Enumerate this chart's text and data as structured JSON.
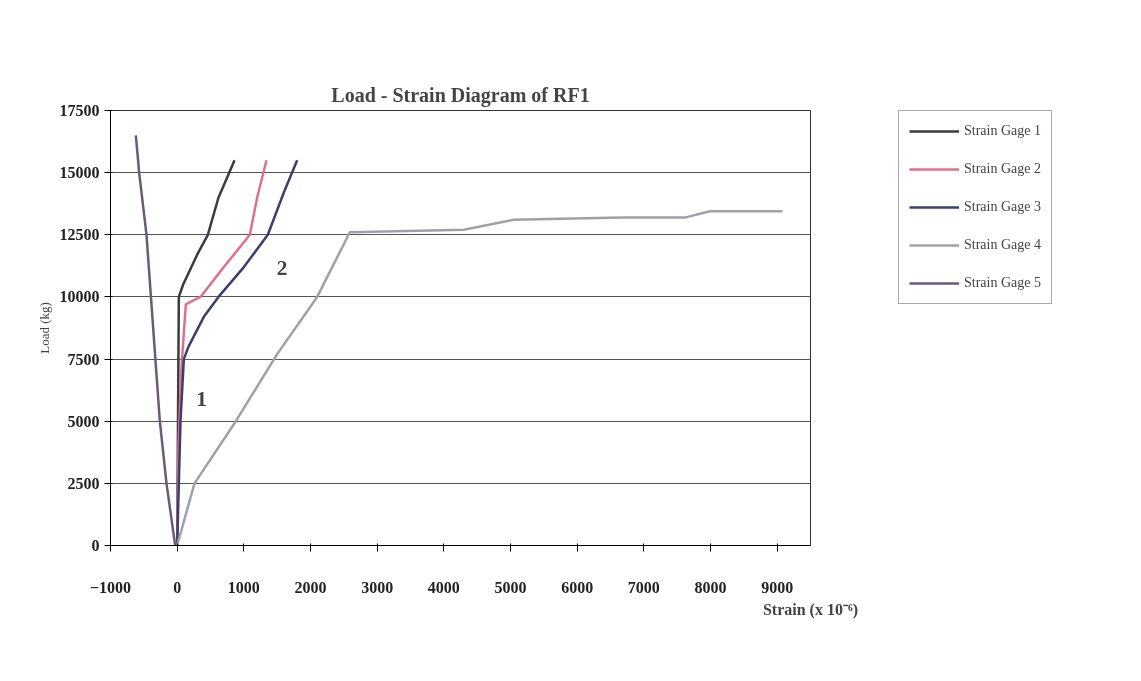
{
  "chart_data": {
    "type": "line",
    "title": "Load - Strain Diagram of RF1",
    "xlabel": "Strain (x 10⁻⁶)",
    "ylabel": "Load (kg)",
    "xlim": [
      -1000,
      9500
    ],
    "xticks": [
      -1000,
      0,
      1000,
      2000,
      3000,
      4000,
      5000,
      6000,
      7000,
      8000,
      9000
    ],
    "ylim": [
      0,
      17500
    ],
    "yticks": [
      0,
      2500,
      5000,
      7500,
      10000,
      12500,
      15000,
      17500
    ],
    "grid": "y",
    "legend": "right",
    "marker": "none",
    "line_style": "solid",
    "annotations": [
      "1",
      "2"
    ],
    "series": [
      {
        "name": "Strain Gage 1",
        "color": "#3a3a44",
        "x": [
          0,
          10,
          20,
          25,
          90,
          300,
          460,
          620,
          750,
          860
        ],
        "values": [
          0,
          4000,
          8000,
          10000,
          10500,
          11700,
          12500,
          14000,
          14800,
          15500
        ]
      },
      {
        "name": "Strain Gage 2",
        "color": "#e0708a",
        "x": [
          0,
          20,
          60,
          130,
          200,
          350,
          700,
          1090,
          1200,
          1340
        ],
        "values": [
          0,
          4000,
          7000,
          9700,
          9800,
          10000,
          11200,
          12500,
          14000,
          15500
        ]
      },
      {
        "name": "Strain Gage 3",
        "color": "#3c3f6e",
        "x": [
          0,
          30,
          50,
          100,
          170,
          400,
          620,
          1000,
          1360,
          1600,
          1800
        ],
        "values": [
          0,
          3000,
          5000,
          7500,
          8000,
          9200,
          10000,
          11200,
          12500,
          14200,
          15500
        ]
      },
      {
        "name": "Strain Gage 4",
        "color": "#a0a0a8",
        "x": [
          0,
          260,
          880,
          1500,
          2100,
          2590,
          4300,
          5040,
          6670,
          7630,
          7990,
          9080
        ],
        "values": [
          0,
          2500,
          5000,
          7700,
          10000,
          12600,
          12700,
          13100,
          13200,
          13200,
          13450,
          13450
        ]
      },
      {
        "name": "Strain Gage 5",
        "color": "#6a5a78",
        "x": [
          -30,
          -160,
          -260,
          -460,
          -570,
          -620
        ],
        "values": [
          0,
          2500,
          5000,
          12500,
          15000,
          16500
        ]
      }
    ]
  }
}
